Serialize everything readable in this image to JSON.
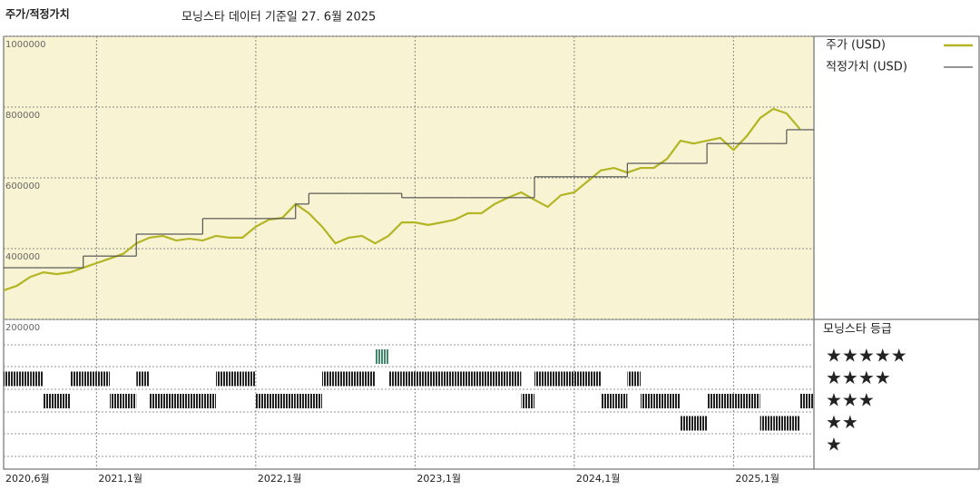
{
  "chart_data": {
    "type": "line",
    "title": "주가/적정가치",
    "subtitle": "모닝스타 데이터 기준일 27. 6월 2025",
    "x": [
      2020.4167,
      2020.5,
      2020.5833,
      2020.6667,
      2020.75,
      2020.8333,
      2020.9167,
      2021,
      2021.0833,
      2021.1667,
      2021.25,
      2021.3333,
      2021.4167,
      2021.5,
      2021.5833,
      2021.6667,
      2021.75,
      2021.8333,
      2021.9167,
      2022,
      2022.0833,
      2022.1667,
      2022.25,
      2022.3333,
      2022.4167,
      2022.5,
      2022.5833,
      2022.6667,
      2022.75,
      2022.8333,
      2022.9167,
      2023,
      2023.0833,
      2023.1667,
      2023.25,
      2023.3333,
      2023.4167,
      2023.5,
      2023.5833,
      2023.6667,
      2023.75,
      2023.8333,
      2023.9167,
      2024,
      2024.0833,
      2024.1667,
      2024.25,
      2024.3333,
      2024.4167,
      2024.5,
      2024.5833,
      2024.6667,
      2024.75,
      2024.8333,
      2024.9167,
      2025,
      2025.0833,
      2025.1667,
      2025.25,
      2025.3333,
      2025.4167
    ],
    "series": [
      {
        "name": "주가 (USD)",
        "color": "#b3b525",
        "values": [
          282000,
          295000,
          320000,
          333000,
          328000,
          333000,
          346000,
          359000,
          372000,
          385000,
          415000,
          431000,
          436000,
          423000,
          428000,
          423000,
          436000,
          431000,
          431000,
          462000,
          482000,
          487000,
          526000,
          500000,
          462000,
          415000,
          431000,
          436000,
          415000,
          436000,
          474000,
          474000,
          467000,
          474000,
          482000,
          500000,
          500000,
          526000,
          544000,
          559000,
          538000,
          518000,
          551000,
          559000,
          590000,
          621000,
          628000,
          615000,
          628000,
          628000,
          654000,
          705000,
          697000,
          705000,
          713000,
          679000,
          718000,
          769000,
          795000,
          782000,
          738000
        ]
      },
      {
        "name": "적정가치 (USD)",
        "color": "#555555",
        "values": [
          346000,
          346000,
          346000,
          346000,
          346000,
          346000,
          379000,
          379000,
          379000,
          379000,
          441000,
          441000,
          441000,
          441000,
          441000,
          485000,
          485000,
          485000,
          485000,
          485000,
          485000,
          485000,
          526000,
          556000,
          556000,
          556000,
          556000,
          556000,
          556000,
          556000,
          544000,
          544000,
          544000,
          544000,
          544000,
          544000,
          544000,
          544000,
          544000,
          544000,
          603000,
          603000,
          603000,
          603000,
          603000,
          603000,
          603000,
          641000,
          641000,
          641000,
          641000,
          641000,
          641000,
          697000,
          697000,
          697000,
          697000,
          697000,
          697000,
          736000,
          736000
        ]
      }
    ],
    "rating_title": "모닝스타 등급",
    "rating_labels": [
      "★",
      "★★",
      "★★★",
      "★★★★",
      "★★★★★"
    ],
    "ratings": [
      4,
      4,
      4,
      3,
      3,
      4,
      4,
      4,
      3,
      3,
      4,
      3,
      3,
      3,
      3,
      3,
      4,
      4,
      4,
      3,
      3,
      3,
      3,
      3,
      4,
      4,
      4,
      4,
      5,
      4,
      4,
      4,
      4,
      4,
      4,
      4,
      4,
      4,
      4,
      3,
      4,
      4,
      4,
      4,
      4,
      3,
      3,
      4,
      3,
      3,
      3,
      2,
      2,
      3,
      3,
      3,
      3,
      2,
      2,
      2,
      3
    ],
    "rating_colors": {
      "default": "#222222",
      "5": "#3f8a68"
    },
    "xlim": [
      2020.4167,
      2025.505
    ],
    "xticks": [
      {
        "value": 2020.4167,
        "label": "2020,6월"
      },
      {
        "value": 2021,
        "label": "2021,1월"
      },
      {
        "value": 2022,
        "label": "2022,1월"
      },
      {
        "value": 2023,
        "label": "2023,1월"
      },
      {
        "value": 2024,
        "label": "2024,1월"
      },
      {
        "value": 2025,
        "label": "2025,1월"
      }
    ],
    "ylim": [
      200000,
      1000000
    ],
    "yticks": [
      200000,
      400000,
      600000,
      800000,
      1000000
    ],
    "grid": true,
    "legend": "top-right",
    "background": "#f8f3d2"
  }
}
